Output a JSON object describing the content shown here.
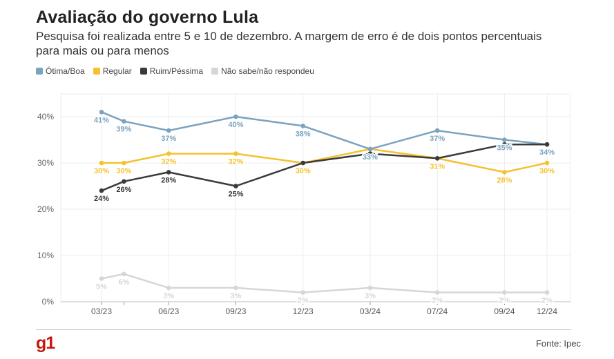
{
  "title": "Avaliação do governo Lula",
  "subtitle": "Pesquisa foi realizada entre 5 e 10 de dezembro. A margem de erro é de dois pontos percentuais para mais ou para menos",
  "legend": [
    {
      "label": "Ótima/Boa",
      "color": "#7ba3c0"
    },
    {
      "label": "Regular",
      "color": "#f5c12e"
    },
    {
      "label": "Ruim/Péssima",
      "color": "#3a3a3a"
    },
    {
      "label": "Não sabe/não respondeu",
      "color": "#d6d6d6"
    }
  ],
  "source": "Fonte: Ipec",
  "logo": "g1",
  "chart_data": {
    "type": "line",
    "title": "Avaliação do governo Lula",
    "ylim": [
      0,
      40
    ],
    "y_ticks": [
      0,
      10,
      20,
      30,
      40
    ],
    "y_tick_labels": [
      "0%",
      "10%",
      "20%",
      "30%",
      "40%"
    ],
    "x_ticks": [
      0,
      3,
      6,
      9,
      12,
      15,
      18,
      19.9
    ],
    "x_tick_labels": [
      "03/23",
      "06/23",
      "09/23",
      "12/23",
      "03/24",
      "07/24",
      "09/24",
      "12/24"
    ],
    "grid": true,
    "legend_position": "top-left",
    "series": [
      {
        "name": "Ótima/Boa",
        "color": "#7ba3c0",
        "x": [
          0,
          1,
          3,
          6,
          9,
          12,
          15,
          18,
          19.9
        ],
        "values": [
          41,
          39,
          37,
          40,
          38,
          33,
          37,
          35,
          34
        ],
        "labels": [
          "41%",
          "39%",
          "37%",
          "40%",
          "38%",
          "33%",
          "37%",
          "35%",
          "34%"
        ]
      },
      {
        "name": "Regular",
        "color": "#f5c12e",
        "x": [
          0,
          1,
          3,
          6,
          9,
          12,
          15,
          18,
          19.9
        ],
        "values": [
          30,
          30,
          32,
          32,
          30,
          33,
          31,
          28,
          30
        ],
        "labels": [
          "30%",
          "30%",
          "32%",
          "32%",
          "30%",
          "",
          "31%",
          "28%",
          "30%"
        ]
      },
      {
        "name": "Ruim/Péssima",
        "color": "#3a3a3a",
        "x": [
          0,
          1,
          3,
          6,
          9,
          12,
          15,
          18,
          19.9
        ],
        "values": [
          24,
          26,
          28,
          25,
          30,
          32,
          31,
          34,
          34
        ],
        "labels": [
          "24%",
          "26%",
          "28%",
          "25%",
          "",
          "",
          "",
          "",
          ""
        ]
      },
      {
        "name": "Não sabe/não respondeu",
        "color": "#d6d6d6",
        "x": [
          0,
          1,
          3,
          6,
          9,
          12,
          15,
          18,
          19.9
        ],
        "values": [
          5,
          6,
          3,
          3,
          2,
          3,
          2,
          2,
          2
        ],
        "labels": [
          "5%",
          "6%",
          "3%",
          "3%",
          "2%",
          "3%",
          "2%",
          "2%",
          "2%"
        ]
      }
    ]
  }
}
